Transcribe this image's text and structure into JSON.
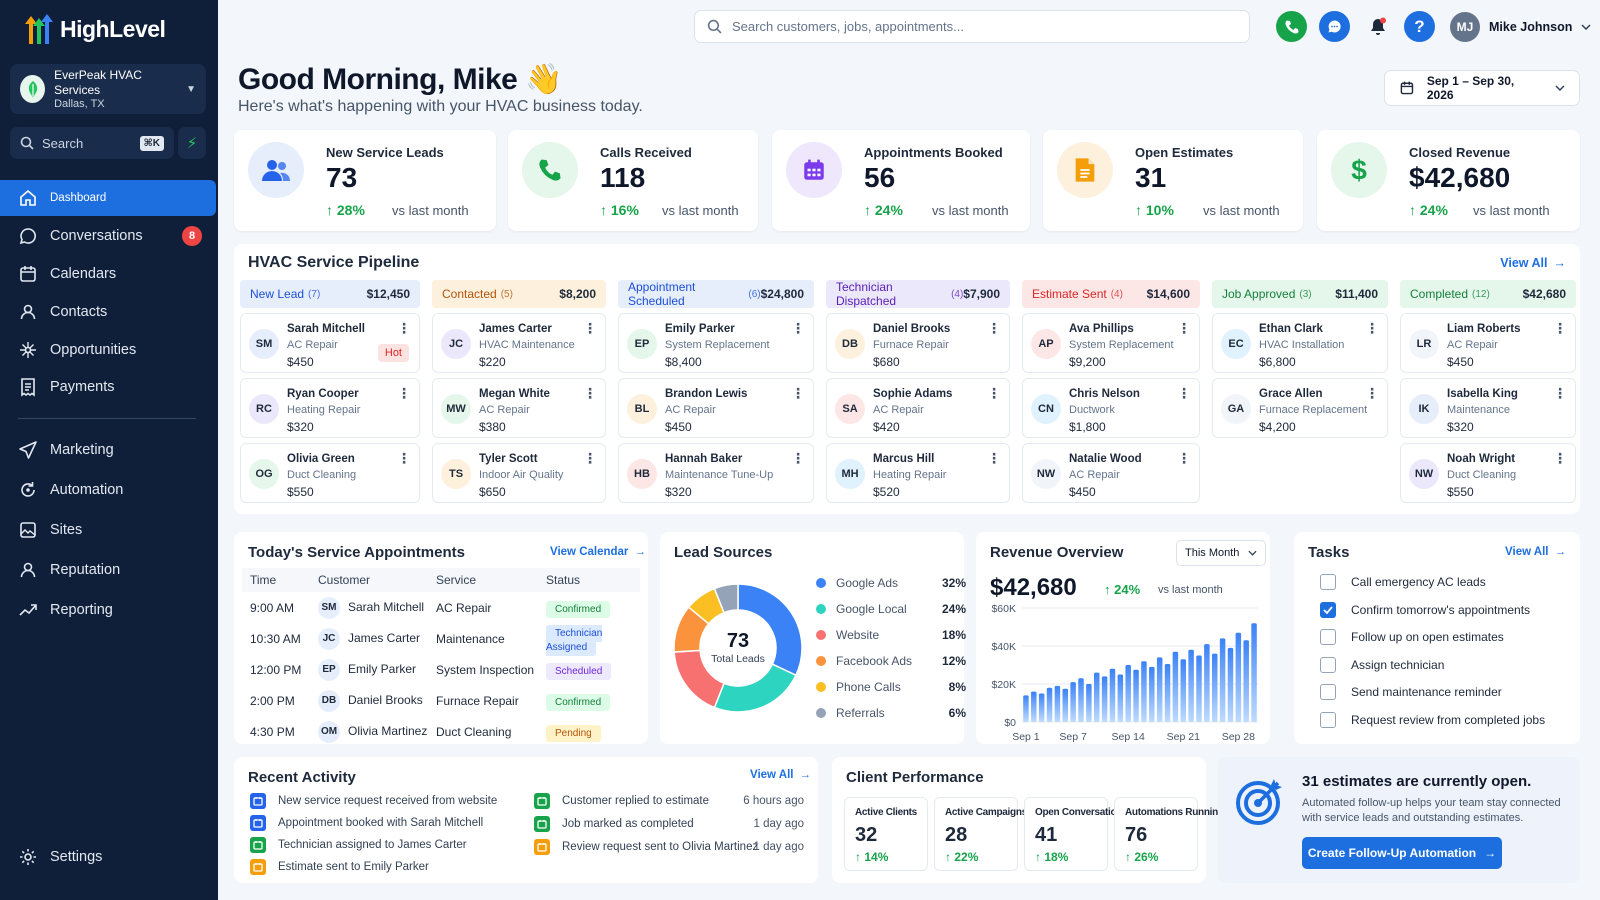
{
  "brand": {
    "name": "HighLevel"
  },
  "account": {
    "name": "EverPeak HVAC Services",
    "location": "Dallas, TX"
  },
  "sidebar": {
    "search_label": "Search",
    "shortcut": "⌘K",
    "items": [
      {
        "label": "Dashboard",
        "icon": "home-icon"
      },
      {
        "label": "Conversations",
        "icon": "chat-icon",
        "badge": "8"
      },
      {
        "label": "Calendars",
        "icon": "calendar-icon"
      },
      {
        "label": "Contacts",
        "icon": "user-icon"
      },
      {
        "label": "Opportunities",
        "icon": "network-icon"
      },
      {
        "label": "Payments",
        "icon": "receipt-icon"
      },
      {
        "label": "Marketing",
        "icon": "send-icon"
      },
      {
        "label": "Automation",
        "icon": "automation-icon"
      },
      {
        "label": "Sites",
        "icon": "sites-icon"
      },
      {
        "label": "Reputation",
        "icon": "reputation-icon"
      },
      {
        "label": "Reporting",
        "icon": "trend-icon"
      }
    ],
    "settings": "Settings"
  },
  "topbar": {
    "search_placeholder": "Search customers, jobs, appointments...",
    "user_initials": "MJ",
    "user_name": "Mike Johnson"
  },
  "header": {
    "greeting": "Good Morning, Mike",
    "emoji": "👋",
    "subtitle": "Here's what's happening with your HVAC business today.",
    "date_range": "Sep 1 – Sep 30, 2026"
  },
  "kpis": [
    {
      "label": "New Service Leads",
      "value": "73",
      "change": "28%",
      "vs": "vs last month",
      "icon": "users-icon",
      "color": "#2563eb",
      "bg": "#e6eefc"
    },
    {
      "label": "Calls Received",
      "value": "118",
      "change": "16%",
      "vs": "vs last month",
      "icon": "phone-icon",
      "color": "#16a34a",
      "bg": "#e5f6ea"
    },
    {
      "label": "Appointments Booked",
      "value": "56",
      "change": "24%",
      "vs": "vs last month",
      "icon": "calendar-icon",
      "color": "#7c3aed",
      "bg": "#efe8fc"
    },
    {
      "label": "Open Estimates",
      "value": "31",
      "change": "10%",
      "vs": "vs last month",
      "icon": "document-icon",
      "color": "#f59e0b",
      "bg": "#fdf1de"
    },
    {
      "label": "Closed Revenue",
      "value": "$42,680",
      "change": "24%",
      "vs": "vs last month",
      "icon": "dollar-icon",
      "color": "#16a34a",
      "bg": "#e5f6ea"
    }
  ],
  "pipeline": {
    "title": "HVAC Service Pipeline",
    "view_all": "View All",
    "columns": [
      {
        "name": "New Lead",
        "count": "(7)",
        "amount": "$12,450",
        "bg": "#e6eefc",
        "color": "#1d4ed8",
        "cards": [
          {
            "initials": "SM",
            "name": "Sarah Mitchell",
            "service": "AC Repair",
            "value": "$450",
            "tag": "Hot"
          },
          {
            "initials": "RC",
            "name": "Ryan Cooper",
            "service": "Heating Repair",
            "value": "$320"
          },
          {
            "initials": "OG",
            "name": "Olivia Green",
            "service": "Duct Cleaning",
            "value": "$550"
          }
        ]
      },
      {
        "name": "Contacted",
        "count": "(5)",
        "amount": "$8,200",
        "bg": "#fdf1de",
        "color": "#b45309",
        "cards": [
          {
            "initials": "JC",
            "name": "James Carter",
            "service": "HVAC Maintenance",
            "value": "$220"
          },
          {
            "initials": "MW",
            "name": "Megan White",
            "service": "AC Repair",
            "value": "$380"
          },
          {
            "initials": "TS",
            "name": "Tyler Scott",
            "service": "Indoor Air Quality",
            "value": "$650"
          }
        ]
      },
      {
        "name": "Appointment Scheduled",
        "count": "(6)",
        "amount": "$24,800",
        "bg": "#e6eefc",
        "color": "#1d4ed8",
        "cards": [
          {
            "initials": "EP",
            "name": "Emily Parker",
            "service": "System Replacement",
            "value": "$8,400"
          },
          {
            "initials": "BL",
            "name": "Brandon Lewis",
            "service": "AC Repair",
            "value": "$450"
          },
          {
            "initials": "HB",
            "name": "Hannah Baker",
            "service": "Maintenance Tune-Up",
            "value": "$320"
          }
        ]
      },
      {
        "name": "Technician Dispatched",
        "count": "(4)",
        "amount": "$7,900",
        "bg": "#ece8fb",
        "color": "#5b21b6",
        "cards": [
          {
            "initials": "DB",
            "name": "Daniel Brooks",
            "service": "Furnace Repair",
            "value": "$680"
          },
          {
            "initials": "SA",
            "name": "Sophie Adams",
            "service": "AC Repair",
            "value": "$420"
          },
          {
            "initials": "MH",
            "name": "Marcus Hill",
            "service": "Heating Repair",
            "value": "$520"
          }
        ]
      },
      {
        "name": "Estimate Sent",
        "count": "(4)",
        "amount": "$14,600",
        "bg": "#fde6e6",
        "color": "#dc2626",
        "cards": [
          {
            "initials": "AP",
            "name": "Ava Phillips",
            "service": "System Replacement",
            "value": "$9,200"
          },
          {
            "initials": "CN",
            "name": "Chris Nelson",
            "service": "Ductwork",
            "value": "$1,800"
          },
          {
            "initials": "NW",
            "name": "Natalie Wood",
            "service": "AC Repair",
            "value": "$450"
          }
        ]
      },
      {
        "name": "Job Approved",
        "count": "(3)",
        "amount": "$11,400",
        "bg": "#e5f6ea",
        "color": "#15803d",
        "cards": [
          {
            "initials": "EC",
            "name": "Ethan Clark",
            "service": "HVAC Installation",
            "value": "$6,800"
          },
          {
            "initials": "GA",
            "name": "Grace Allen",
            "service": "Furnace Replacement",
            "value": "$4,200"
          }
        ]
      },
      {
        "name": "Completed",
        "count": "(12)",
        "amount": "$42,680",
        "bg": "#e5f6ea",
        "color": "#15803d",
        "cards": [
          {
            "initials": "LR",
            "name": "Liam Roberts",
            "service": "AC Repair",
            "value": "$450"
          },
          {
            "initials": "IK",
            "name": "Isabella King",
            "service": "Maintenance",
            "value": "$320"
          },
          {
            "initials": "NW",
            "name": "Noah Wright",
            "service": "Duct Cleaning",
            "value": "$550"
          }
        ]
      }
    ]
  },
  "appointments": {
    "title": "Today's Service Appointments",
    "link": "View Calendar",
    "headers": [
      "Time",
      "Customer",
      "Service",
      "Status"
    ],
    "rows": [
      {
        "time": "9:00 AM",
        "initials": "SM",
        "customer": "Sarah Mitchell",
        "service": "AC Repair",
        "status": "Confirmed"
      },
      {
        "time": "10:30 AM",
        "initials": "JC",
        "customer": "James Carter",
        "service": "Maintenance",
        "status": "Technician Assigned"
      },
      {
        "time": "12:00 PM",
        "initials": "EP",
        "customer": "Emily Parker",
        "service": "System Inspection",
        "status": "Scheduled"
      },
      {
        "time": "2:00 PM",
        "initials": "DB",
        "customer": "Daniel Brooks",
        "service": "Furnace Repair",
        "status": "Confirmed"
      },
      {
        "time": "4:30 PM",
        "initials": "OM",
        "customer": "Olivia Martinez",
        "service": "Duct Cleaning",
        "status": "Pending"
      }
    ]
  },
  "lead_sources": {
    "title": "Lead Sources",
    "center_value": "73",
    "center_label": "Total Leads",
    "items": [
      {
        "name": "Google Ads",
        "pct": "32%",
        "value": 32,
        "color": "#3b82f6"
      },
      {
        "name": "Google Local",
        "pct": "24%",
        "value": 24,
        "color": "#2dd4bf"
      },
      {
        "name": "Website",
        "pct": "18%",
        "value": 18,
        "color": "#f87171"
      },
      {
        "name": "Facebook Ads",
        "pct": "12%",
        "value": 12,
        "color": "#fb923c"
      },
      {
        "name": "Phone Calls",
        "pct": "8%",
        "value": 8,
        "color": "#fbbf24"
      },
      {
        "name": "Referrals",
        "pct": "6%",
        "value": 6,
        "color": "#94a3b8"
      }
    ]
  },
  "revenue": {
    "title": "Revenue Overview",
    "period": "This Month",
    "total": "$42,680",
    "change": "24%",
    "vs": "vs last month"
  },
  "chart_data": {
    "type": "bar",
    "x": [
      1,
      2,
      3,
      4,
      5,
      6,
      7,
      8,
      9,
      10,
      11,
      12,
      13,
      14,
      15,
      16,
      17,
      18,
      19,
      20,
      21,
      22,
      23,
      24,
      25,
      26,
      27,
      28,
      29,
      30
    ],
    "values": [
      14000,
      16000,
      15000,
      18000,
      19000,
      17500,
      21000,
      23000,
      20000,
      26000,
      24000,
      28000,
      25000,
      30000,
      27500,
      32000,
      29000,
      34000,
      30500,
      37000,
      33000,
      38000,
      35000,
      41000,
      36000,
      44000,
      39000,
      47000,
      43000,
      52000
    ],
    "xtick_labels": [
      "Sep 1",
      "Sep 7",
      "Sep 14",
      "Sep 21",
      "Sep 28"
    ],
    "xticks": [
      1,
      7,
      14,
      21,
      28
    ],
    "ytick_labels": [
      "$0",
      "$20K",
      "$40K",
      "$60K"
    ],
    "yticks": [
      0,
      20000,
      40000,
      60000
    ],
    "ylim": [
      0,
      60000
    ],
    "grid": true
  },
  "tasks": {
    "title": "Tasks",
    "view_all": "View All",
    "items": [
      {
        "label": "Call emergency AC leads",
        "done": false
      },
      {
        "label": "Confirm tomorrow's appointments",
        "done": true
      },
      {
        "label": "Follow up on open estimates",
        "done": false
      },
      {
        "label": "Assign technician",
        "done": false
      },
      {
        "label": "Send maintenance reminder",
        "done": false
      },
      {
        "label": "Request review from completed jobs",
        "done": false
      }
    ]
  },
  "activity": {
    "title": "Recent Activity",
    "view_all": "View All",
    "left": [
      {
        "text": "New service request received from website",
        "color": "#2563eb"
      },
      {
        "text": "Appointment booked with Sarah Mitchell",
        "color": "#2563eb"
      },
      {
        "text": "Technician assigned to James Carter",
        "color": "#16a34a"
      },
      {
        "text": "Estimate sent to Emily Parker",
        "color": "#f59e0b"
      }
    ],
    "right": [
      {
        "text": "Customer replied to estimate",
        "time": "6 hours ago",
        "color": "#16a34a"
      },
      {
        "text": "Job marked as completed",
        "time": "1 day ago",
        "color": "#16a34a"
      },
      {
        "text": "Review request sent to Olivia Martinez",
        "time": "1 day ago",
        "color": "#f59e0b"
      }
    ]
  },
  "client_perf": {
    "title": "Client Performance",
    "items": [
      {
        "label": "Active Clients",
        "value": "32",
        "change": "14%"
      },
      {
        "label": "Active Campaigns",
        "value": "28",
        "change": "22%"
      },
      {
        "label": "Open Conversations",
        "value": "41",
        "change": "18%"
      },
      {
        "label": "Automations Running",
        "value": "76",
        "change": "26%"
      }
    ]
  },
  "promo": {
    "title": "31 estimates are currently open.",
    "text1": "Automated follow-up helps your team stay connected",
    "text2": "with service leads and outstanding estimates.",
    "button": "Create Follow-Up Automation"
  }
}
